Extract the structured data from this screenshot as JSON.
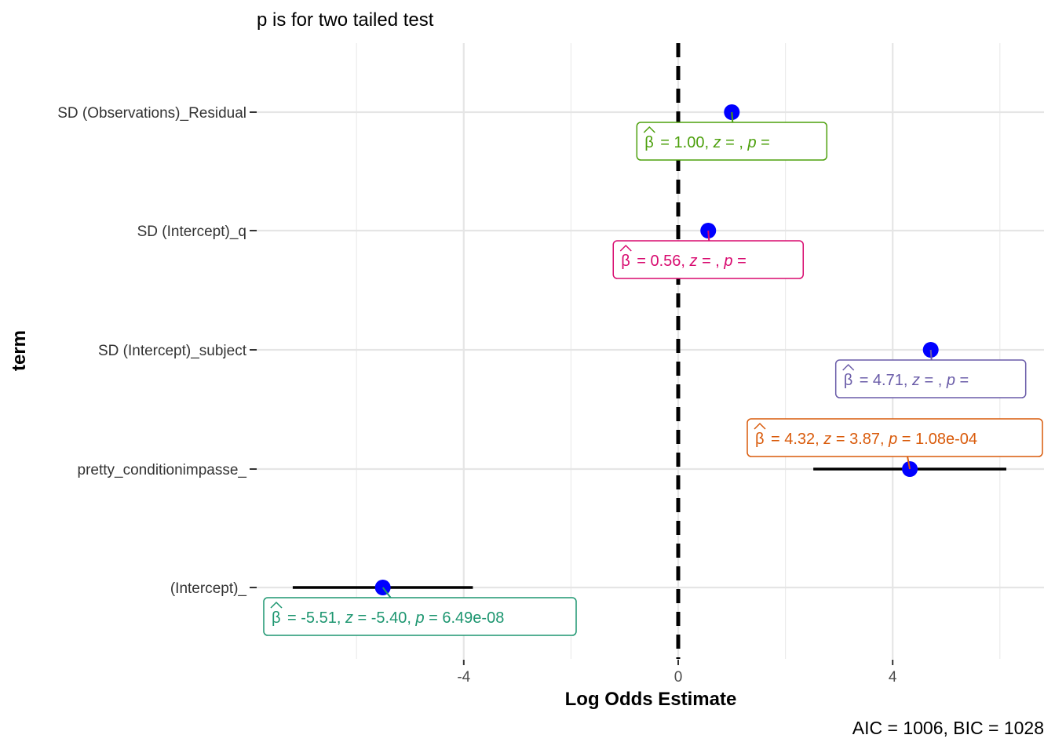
{
  "chart_data": {
    "type": "scatter",
    "subtitle": "p is for two tailed test",
    "xlabel": "Log Odds Estimate",
    "ylabel": "term",
    "caption": "AIC = 1006, BIC = 1028",
    "xlim": [
      -8.0,
      6.3
    ],
    "x_ticks": [
      {
        "value": -4,
        "label": "-4"
      },
      {
        "value": 0,
        "label": "0"
      },
      {
        "value": 4,
        "label": "4"
      }
    ],
    "x_minor": [
      -6,
      -2,
      2,
      6
    ],
    "reference_line": 0,
    "grid": true,
    "terms": [
      {
        "term": "SD (Observations)_Residual",
        "estimate": 1.0,
        "ci": null,
        "label": {
          "beta": "1.00",
          "z": "",
          "p": ""
        },
        "color": "#4DA00D",
        "label_pos": "below"
      },
      {
        "term": "SD (Intercept)_q",
        "estimate": 0.56,
        "ci": null,
        "label": {
          "beta": "0.56",
          "z": "",
          "p": ""
        },
        "color": "#D80A6F",
        "label_pos": "below"
      },
      {
        "term": "SD (Intercept)_subject",
        "estimate": 4.71,
        "ci": null,
        "label": {
          "beta": "4.71",
          "z": "",
          "p": ""
        },
        "color": "#6A5CA8",
        "label_pos": "below"
      },
      {
        "term": "pretty_conditionimpasse_",
        "estimate": 4.32,
        "ci": [
          2.52,
          6.12
        ],
        "label": {
          "beta": "4.32",
          "z": "3.87",
          "p": "1.08e-04"
        },
        "color": "#D95A0A",
        "label_pos": "above"
      },
      {
        "term": "(Intercept)_",
        "estimate": -5.51,
        "ci": [
          -7.19,
          -3.83
        ],
        "label": {
          "beta": "-5.51",
          "z": "-5.40",
          "p": "6.49e-08"
        },
        "color": "#1D9670",
        "label_pos": "below"
      }
    ],
    "point_color": "#0000FF"
  }
}
